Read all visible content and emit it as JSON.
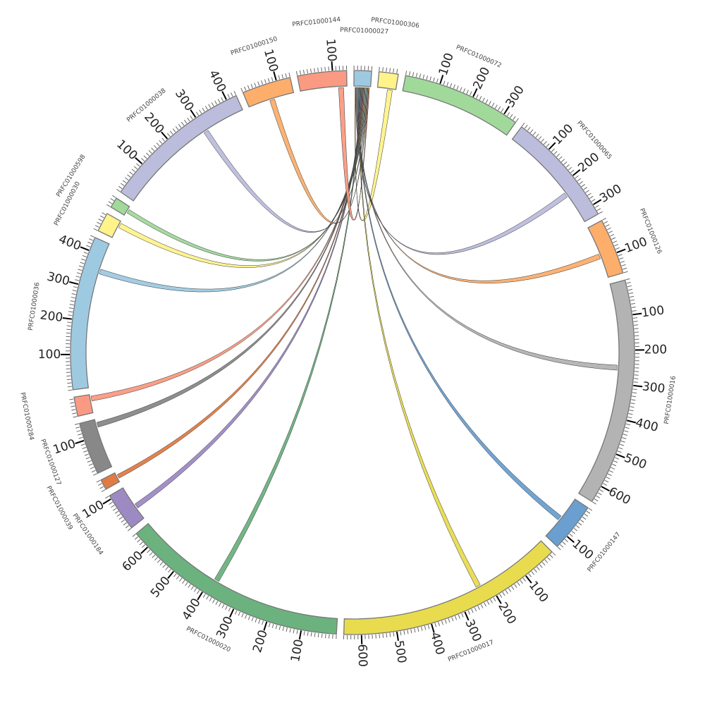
{
  "diagram": {
    "type": "circos-chord",
    "target_segment": "PRFC01000027",
    "segments": [
      {
        "name": "PRFC01000027",
        "length": 50,
        "color": "#9ecae1"
      },
      {
        "name": "PRFC01000306",
        "length": 55,
        "color": "#fff38a"
      },
      {
        "name": "PRFC01000072",
        "length": 340,
        "color": "#a1d99b"
      },
      {
        "name": "PRFC01000065",
        "length": 330,
        "color": "#bcbddc"
      },
      {
        "name": "PRFC01000126",
        "length": 160,
        "color": "#fdae6b"
      },
      {
        "name": "PRFC01000016",
        "length": 650,
        "color": "#b3b3b3"
      },
      {
        "name": "PRFC01000147",
        "length": 140,
        "color": "#6a9fcf"
      },
      {
        "name": "PRFC01000017",
        "length": 650,
        "color": "#e8dc4e"
      },
      {
        "name": "PRFC01000020",
        "length": 650,
        "color": "#6cb27f"
      },
      {
        "name": "PRFC01000184",
        "length": 110,
        "color": "#9d8ac3"
      },
      {
        "name": "PRFC01000039",
        "length": 30,
        "color": "#e07b45"
      },
      {
        "name": "PRFC01000127",
        "length": 150,
        "color": "#888888"
      },
      {
        "name": "PRFC01000284",
        "length": 55,
        "color": "#fb9a82"
      },
      {
        "name": "PRFC01000036",
        "length": 440,
        "color": "#9ecae1"
      },
      {
        "name": "PRFC01000030",
        "length": 55,
        "color": "#fff38a"
      },
      {
        "name": "PRFC01000598",
        "length": 30,
        "color": "#a1d99b"
      },
      {
        "name": "PRFC01000038",
        "length": 430,
        "color": "#bcbddc"
      },
      {
        "name": "PRFC01000150",
        "length": 140,
        "color": "#fdae6b"
      },
      {
        "name": "PRFC01000144",
        "length": 140,
        "color": "#fb9a82"
      }
    ],
    "links": [
      {
        "source": "PRFC01000306",
        "start": 30,
        "end": 45
      },
      {
        "source": "PRFC01000065",
        "start": 225,
        "end": 240
      },
      {
        "source": "PRFC01000126",
        "start": 85,
        "end": 100
      },
      {
        "source": "PRFC01000016",
        "start": 245,
        "end": 260
      },
      {
        "source": "PRFC01000147",
        "start": 65,
        "end": 80
      },
      {
        "source": "PRFC01000017",
        "start": 225,
        "end": 240
      },
      {
        "source": "PRFC01000020",
        "start": 375,
        "end": 390
      },
      {
        "source": "PRFC01000184",
        "start": 35,
        "end": 50
      },
      {
        "source": "PRFC01000039",
        "start": 10,
        "end": 22
      },
      {
        "source": "PRFC01000127",
        "start": 125,
        "end": 140
      },
      {
        "source": "PRFC01000284",
        "start": 35,
        "end": 50
      },
      {
        "source": "PRFC01000036",
        "start": 345,
        "end": 360
      },
      {
        "source": "PRFC01000030",
        "start": 35,
        "end": 50
      },
      {
        "source": "PRFC01000598",
        "start": 10,
        "end": 22
      },
      {
        "source": "PRFC01000038",
        "start": 295,
        "end": 310
      },
      {
        "source": "PRFC01000150",
        "start": 65,
        "end": 80
      },
      {
        "source": "PRFC01000144",
        "start": 115,
        "end": 130
      }
    ]
  }
}
